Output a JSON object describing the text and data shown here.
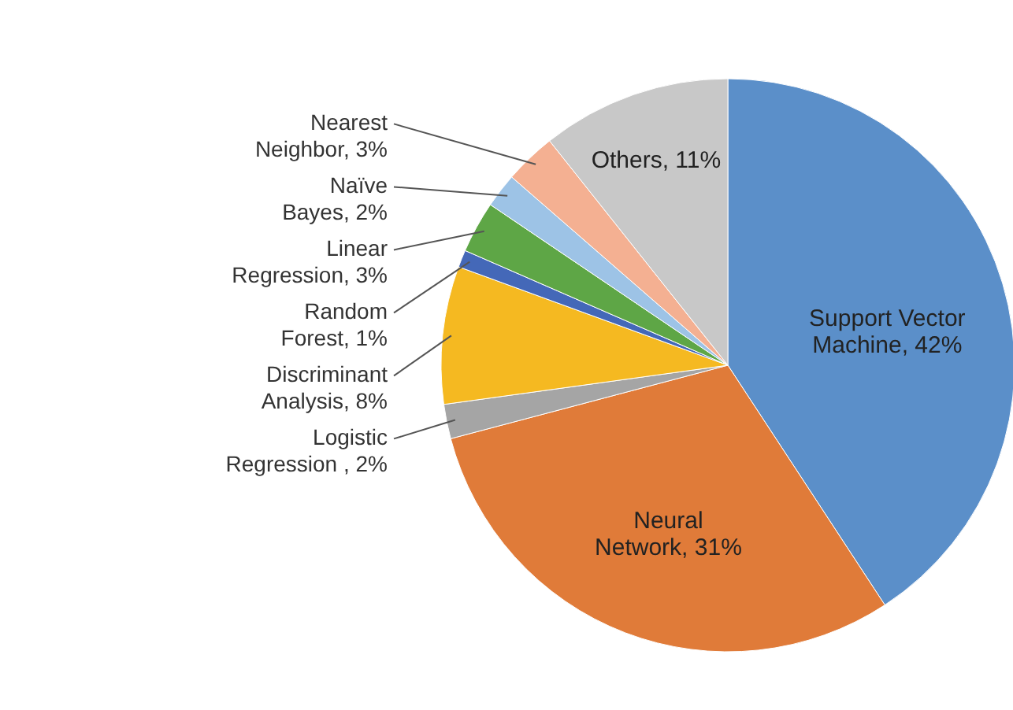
{
  "chart_data": {
    "type": "pie",
    "categories": [
      "Support Vector Machine",
      "Neural Network",
      "Logistic Regression ",
      "Discriminant Analysis",
      "Random Forest",
      "Linear Regression",
      "Naïve Bayes",
      "Nearest Neighbor",
      "Others"
    ],
    "values": [
      42,
      31,
      2,
      8,
      1,
      3,
      2,
      3,
      11
    ],
    "value_labels": [
      "42%",
      "31%",
      "2%",
      "8%",
      "1%",
      "3%",
      "2%",
      "3%",
      "11%"
    ],
    "colors": [
      "#5b8fc9",
      "#e07b39",
      "#a5a5a5",
      "#f5b921",
      "#4468b8",
      "#5ea646",
      "#9dc3e6",
      "#f4b092",
      "#c8c8c8"
    ]
  }
}
